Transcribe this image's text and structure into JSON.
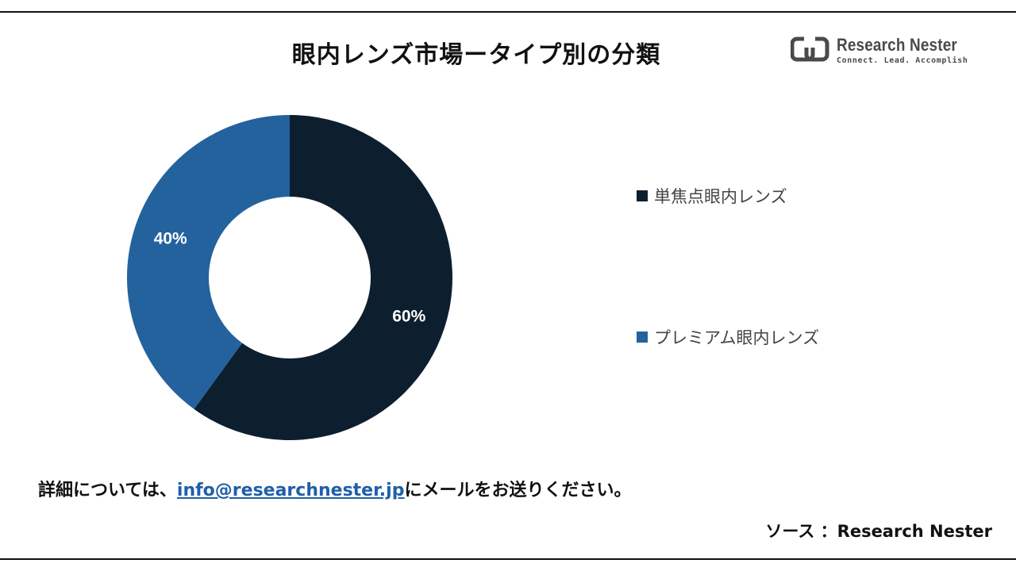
{
  "title": "眼内レンズ市場ータイプ別の分類",
  "logo": {
    "name": "Research Nester",
    "tagline": "Connect. Lead. Accomplish"
  },
  "chart_data": {
    "type": "pie",
    "title": "眼内レンズ市場ータイプ別の分類",
    "categories": [
      "単焦点眼内レンズ",
      "プレミアム眼内レンズ"
    ],
    "values": [
      60,
      40
    ],
    "labels": [
      "60%",
      "40%"
    ],
    "colors": [
      "#0d1e2f",
      "#23629d"
    ],
    "legend_position": "right"
  },
  "contact": {
    "prefix": "詳細については、",
    "email": "info@researchnester.jp",
    "suffix": "にメールをお送りください。"
  },
  "source": "ソース ：Research Nester"
}
